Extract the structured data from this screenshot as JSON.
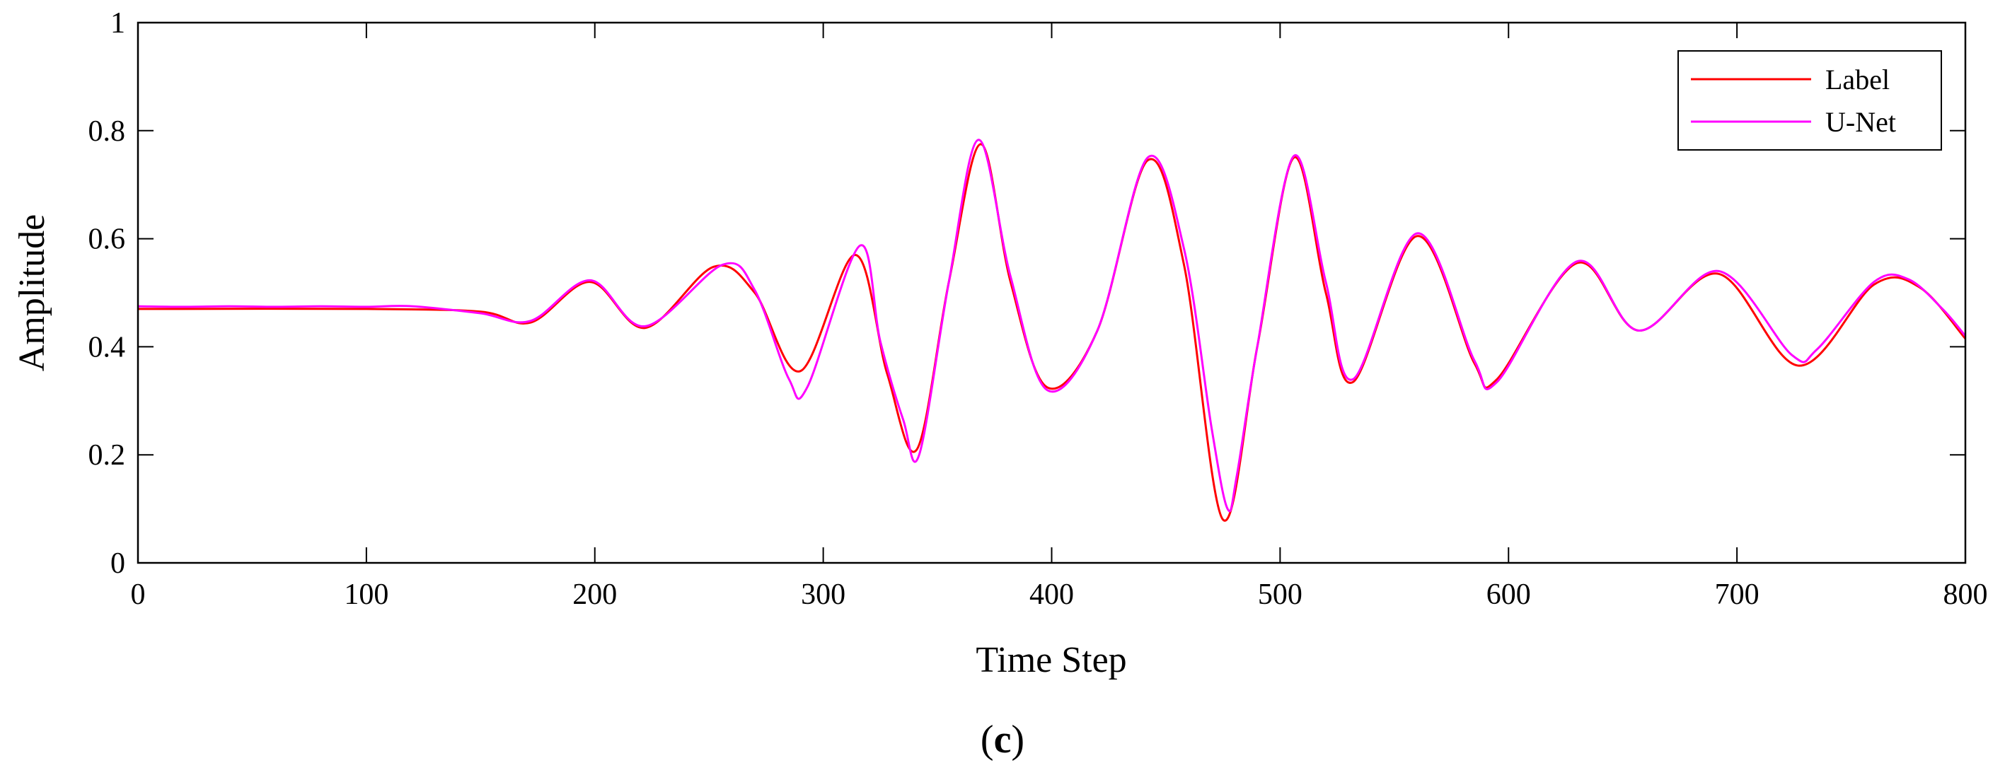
{
  "caption": {
    "open": "(",
    "letter": "c",
    "close": ")"
  },
  "colors": {
    "label": "#ff0000",
    "unet": "#ff00ff",
    "axis": "#000000"
  },
  "chart_data": {
    "type": "line",
    "xlabel": "Time Step",
    "ylabel": "Amplitude",
    "xlim": [
      0,
      800
    ],
    "ylim": [
      0,
      1
    ],
    "xticks": [
      0,
      100,
      200,
      300,
      400,
      500,
      600,
      700,
      800
    ],
    "yticks": [
      0,
      0.2,
      0.4,
      0.6,
      0.8,
      1
    ],
    "ytick_labels": [
      "0",
      "0.2",
      "0.4",
      "0.6",
      "0.8",
      "1"
    ],
    "grid": false,
    "legend_position": "top-right",
    "series": [
      {
        "name": "Label",
        "x": [
          0,
          100,
          150,
          172,
          198,
          222,
          252,
          270,
          290,
          314,
          328,
          341,
          355,
          369,
          382,
          398,
          420,
          442,
          458,
          475,
          490,
          506,
          520,
          532,
          560,
          585,
          595,
          630,
          657,
          692,
          727,
          760,
          780,
          800
        ],
        "y": [
          0.47,
          0.47,
          0.465,
          0.445,
          0.52,
          0.435,
          0.548,
          0.5,
          0.355,
          0.57,
          0.35,
          0.21,
          0.52,
          0.775,
          0.52,
          0.325,
          0.43,
          0.745,
          0.55,
          0.08,
          0.4,
          0.75,
          0.5,
          0.335,
          0.605,
          0.37,
          0.34,
          0.555,
          0.43,
          0.535,
          0.365,
          0.515,
          0.51,
          0.415
        ]
      },
      {
        "name": "U-Net",
        "x": [
          0,
          20,
          40,
          60,
          80,
          100,
          120,
          150,
          172,
          198,
          222,
          256,
          270,
          285,
          293,
          316,
          325,
          335,
          342,
          355,
          368,
          382,
          398,
          420,
          442,
          458,
          470,
          477,
          481,
          490,
          506,
          520,
          532,
          560,
          585,
          595,
          630,
          657,
          692,
          724,
          735,
          760,
          775,
          790,
          800
        ],
        "y": [
          0.475,
          0.474,
          0.475,
          0.474,
          0.475,
          0.474,
          0.475,
          0.462,
          0.448,
          0.523,
          0.438,
          0.552,
          0.505,
          0.34,
          0.325,
          0.587,
          0.41,
          0.265,
          0.2,
          0.52,
          0.783,
          0.53,
          0.32,
          0.43,
          0.75,
          0.58,
          0.25,
          0.1,
          0.16,
          0.4,
          0.753,
          0.52,
          0.34,
          0.61,
          0.375,
          0.335,
          0.558,
          0.43,
          0.54,
          0.385,
          0.395,
          0.52,
          0.525,
          0.47,
          0.42
        ]
      }
    ]
  }
}
